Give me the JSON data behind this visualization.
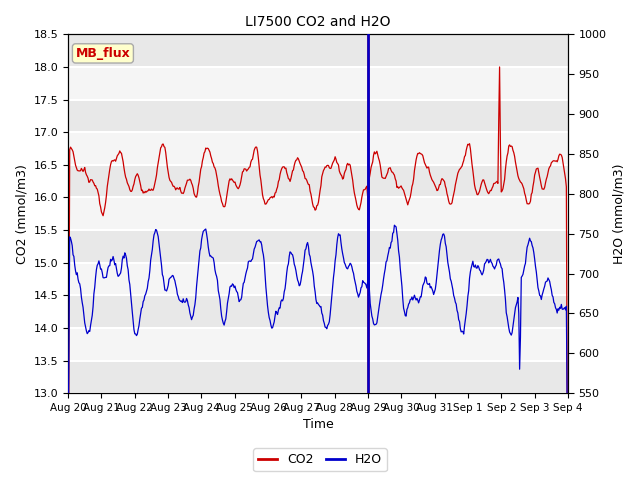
{
  "title": "LI7500 CO2 and H2O",
  "xlabel": "Time",
  "ylabel_left": "CO2 (mmol/m3)",
  "ylabel_right": "H2O (mmol/m3)",
  "ylim_left": [
    13.0,
    18.5
  ],
  "ylim_right": [
    550,
    1000
  ],
  "yticks_left": [
    13.0,
    13.5,
    14.0,
    14.5,
    15.0,
    15.5,
    16.0,
    16.5,
    17.0,
    17.5,
    18.0,
    18.5
  ],
  "yticks_right": [
    550,
    600,
    650,
    700,
    750,
    800,
    850,
    900,
    950,
    1000
  ],
  "xtick_labels": [
    "Aug 20",
    "Aug 21",
    "Aug 22",
    "Aug 23",
    "Aug 24",
    "Aug 25",
    "Aug 26",
    "Aug 27",
    "Aug 28",
    "Aug 29",
    "Aug 30",
    "Aug 31",
    "Sep 1",
    "Sep 2",
    "Sep 3",
    "Sep 4"
  ],
  "num_days": 15,
  "annotation_box": "MB_flux",
  "annotation_color": "#cc0000",
  "annotation_bg": "#ffffcc",
  "annotation_edge": "#aaaaaa",
  "plot_bg_light": "#e8e8e8",
  "plot_bg_white": "#f8f8f8",
  "co2_color": "#cc0000",
  "h2o_color": "#0000cc",
  "grid_color": "white",
  "seed": 12345,
  "n_points": 600
}
